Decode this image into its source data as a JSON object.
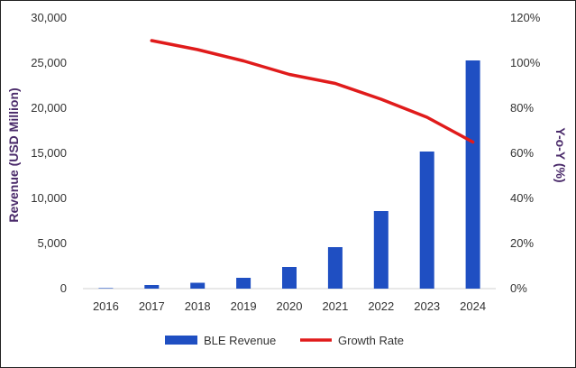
{
  "chart_data": {
    "type": "bar",
    "categories": [
      "2016",
      "2017",
      "2018",
      "2019",
      "2020",
      "2021",
      "2022",
      "2023",
      "2024"
    ],
    "series": [
      {
        "name": "BLE Revenue",
        "kind": "bar",
        "axis": "left",
        "color": "#1f4fc2",
        "values": [
          60,
          400,
          650,
          1200,
          2400,
          4600,
          8600,
          15200,
          25300
        ]
      },
      {
        "name": "Growth Rate",
        "kind": "line",
        "axis": "right",
        "color": "#e01b1b",
        "values": [
          null,
          110,
          106,
          101,
          95,
          91,
          84,
          76,
          65
        ]
      }
    ],
    "ylabel": "Revenue (USD Million)",
    "y2label": "Y-o-Y (%)",
    "ylim": [
      0,
      30000
    ],
    "y2lim": [
      0,
      120
    ],
    "yticks": [
      "0",
      "5,000",
      "10,000",
      "15,000",
      "20,000",
      "25,000",
      "30,000"
    ],
    "y2ticks": [
      "0%",
      "20%",
      "40%",
      "60%",
      "80%",
      "100%",
      "120%"
    ],
    "axis_title_color": "#4a2a6a",
    "grid": false,
    "legend_position": "bottom"
  }
}
